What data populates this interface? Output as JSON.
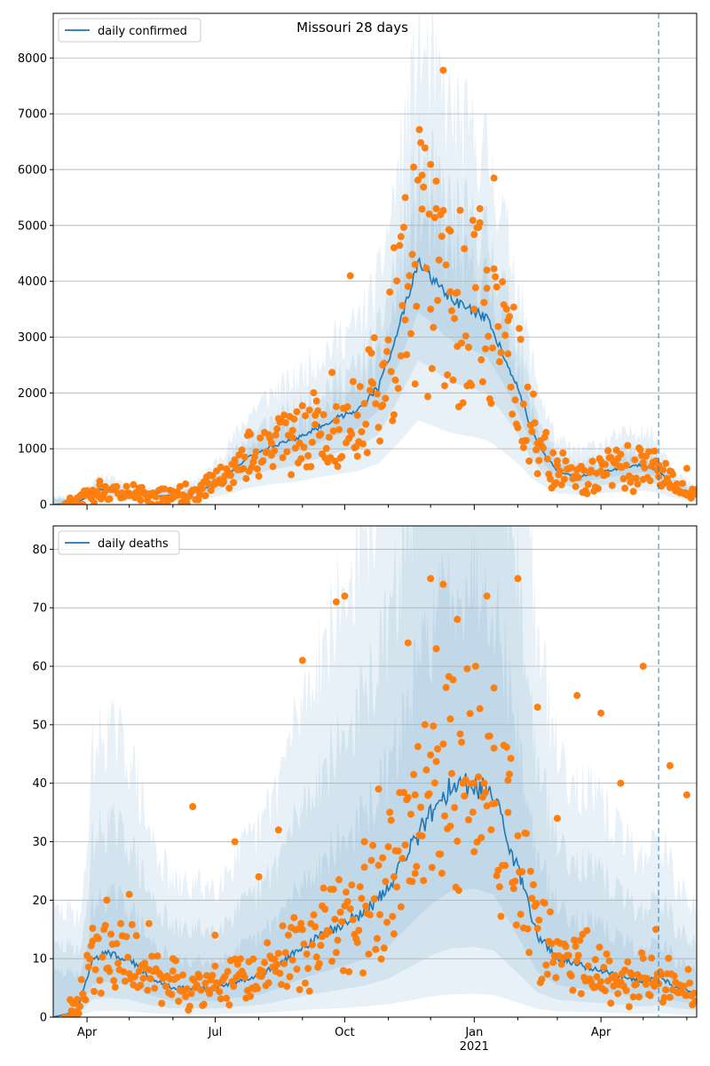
{
  "figure": {
    "suptitle": "Missouri 28 days"
  },
  "colors": {
    "model": "#1f77b4",
    "observed": "#ff7f0e",
    "band": "#1f77b4",
    "grid": "#b0b0b0",
    "forecast_line": "#1f77b4"
  },
  "chart_data": [
    {
      "type": "line",
      "title": "",
      "legend": [
        "daily confirmed"
      ],
      "legend_position": "top-left",
      "x_range": [
        "2020-03-08",
        "2021-06-08"
      ],
      "ylim": [
        0,
        8800
      ],
      "yticks": [
        0,
        1000,
        2000,
        3000,
        4000,
        5000,
        6000,
        7000,
        8000
      ],
      "forecast_start": "2021-05-12",
      "grid": "horizontal",
      "series": [
        {
          "name": "daily confirmed",
          "kind": "model_median",
          "x": [
            "2020-03-08",
            "2020-03-25",
            "2020-04-10",
            "2020-05-01",
            "2020-05-20",
            "2020-06-10",
            "2020-06-25",
            "2020-07-10",
            "2020-07-25",
            "2020-08-10",
            "2020-08-25",
            "2020-09-10",
            "2020-09-25",
            "2020-10-10",
            "2020-10-25",
            "2020-11-05",
            "2020-11-15",
            "2020-11-22",
            "2020-12-01",
            "2020-12-10",
            "2020-12-20",
            "2021-01-01",
            "2021-01-10",
            "2021-01-20",
            "2021-02-01",
            "2021-02-10",
            "2021-02-20",
            "2021-03-01",
            "2021-03-15",
            "2021-04-01",
            "2021-04-15",
            "2021-05-01",
            "2021-05-12",
            "2021-05-25",
            "2021-06-08"
          ],
          "y": [
            0,
            30,
            280,
            200,
            150,
            180,
            300,
            550,
            850,
            1050,
            1150,
            1350,
            1550,
            1700,
            2100,
            2900,
            3700,
            4300,
            4100,
            3800,
            3600,
            3450,
            3300,
            2800,
            2100,
            1400,
            900,
            600,
            500,
            580,
            650,
            720,
            600,
            300,
            150
          ]
        },
        {
          "name": "observed",
          "kind": "scatter",
          "x": [
            "2020-03-20",
            "2020-04-01",
            "2020-04-10",
            "2020-05-01",
            "2020-06-01",
            "2020-06-20",
            "2020-07-01",
            "2020-07-15",
            "2020-07-25",
            "2020-08-10",
            "2020-08-25",
            "2020-09-10",
            "2020-09-25",
            "2020-10-05",
            "2020-10-10",
            "2020-10-20",
            "2020-10-28",
            "2020-11-05",
            "2020-11-10",
            "2020-11-13",
            "2020-11-20",
            "2020-11-25",
            "2020-12-01",
            "2020-12-05",
            "2020-12-10",
            "2020-12-15",
            "2020-12-20",
            "2021-01-01",
            "2021-01-05",
            "2021-01-10",
            "2021-01-15",
            "2021-01-25",
            "2021-02-05",
            "2021-02-15",
            "2021-03-01",
            "2021-03-15",
            "2021-04-01",
            "2021-04-15",
            "2021-05-01",
            "2021-05-12",
            "2021-05-20",
            "2021-06-01"
          ],
          "y": [
            100,
            250,
            350,
            200,
            150,
            250,
            400,
            800,
            1300,
            1100,
            1200,
            1600,
            1500,
            4100,
            1600,
            2200,
            2500,
            4600,
            4800,
            5500,
            4300,
            5900,
            3500,
            5300,
            7780,
            4900,
            3800,
            3500,
            5300,
            4200,
            5850,
            2700,
            1800,
            1100,
            700,
            500,
            600,
            900,
            750,
            500,
            600,
            650
          ]
        }
      ]
    },
    {
      "type": "line",
      "title": "",
      "legend": [
        "daily deaths"
      ],
      "legend_position": "top-left",
      "x_range": [
        "2020-03-08",
        "2021-06-08"
      ],
      "ylim": [
        0,
        84
      ],
      "yticks": [
        0,
        10,
        20,
        30,
        40,
        50,
        60,
        70,
        80
      ],
      "xticks": [
        "Apr",
        "Jul",
        "Oct",
        "Jan",
        "Apr"
      ],
      "xtick_dates": [
        "2020-04-01",
        "2020-07-01",
        "2020-10-01",
        "2021-01-01",
        "2021-04-01"
      ],
      "year_label": "2021",
      "forecast_start": "2021-05-12",
      "grid": "horizontal",
      "series": [
        {
          "name": "daily deaths",
          "kind": "model_median",
          "x": [
            "2020-03-08",
            "2020-03-25",
            "2020-04-05",
            "2020-04-15",
            "2020-05-01",
            "2020-05-15",
            "2020-06-01",
            "2020-06-15",
            "2020-07-01",
            "2020-07-15",
            "2020-08-01",
            "2020-08-15",
            "2020-09-01",
            "2020-09-15",
            "2020-10-01",
            "2020-10-15",
            "2020-11-01",
            "2020-11-15",
            "2020-12-01",
            "2020-12-15",
            "2021-01-01",
            "2021-01-15",
            "2021-02-01",
            "2021-02-15",
            "2021-03-01",
            "2021-03-15",
            "2021-04-01",
            "2021-04-15",
            "2021-05-01",
            "2021-05-12",
            "2021-05-25",
            "2021-06-08"
          ],
          "y": [
            0,
            1,
            10,
            11,
            10,
            7,
            5,
            5,
            5,
            6,
            7,
            9,
            12,
            14,
            16,
            18,
            22,
            28,
            35,
            39,
            40,
            38,
            25,
            14,
            10,
            9,
            8,
            7,
            6,
            7,
            5,
            4
          ]
        },
        {
          "name": "observed",
          "kind": "scatter",
          "x": [
            "2020-03-25",
            "2020-04-05",
            "2020-04-15",
            "2020-05-01",
            "2020-05-15",
            "2020-06-01",
            "2020-06-15",
            "2020-07-01",
            "2020-07-15",
            "2020-08-01",
            "2020-08-15",
            "2020-09-01",
            "2020-09-15",
            "2020-09-25",
            "2020-10-01",
            "2020-10-15",
            "2020-10-25",
            "2020-11-05",
            "2020-11-15",
            "2020-11-20",
            "2020-12-01",
            "2020-12-05",
            "2020-12-10",
            "2020-12-15",
            "2020-12-20",
            "2021-01-01",
            "2021-01-10",
            "2021-01-15",
            "2021-01-25",
            "2021-02-01",
            "2021-02-15",
            "2021-03-01",
            "2021-03-15",
            "2021-04-01",
            "2021-04-15",
            "2021-05-01",
            "2021-05-10",
            "2021-05-20",
            "2021-06-01"
          ],
          "y": [
            1,
            13,
            20,
            21,
            16,
            10,
            36,
            14,
            30,
            24,
            32,
            61,
            19,
            71,
            72,
            30,
            39,
            24,
            64,
            38,
            75,
            63,
            74,
            51,
            68,
            40,
            72,
            46,
            35,
            75,
            53,
            34,
            55,
            52,
            40,
            60,
            15,
            43,
            38
          ]
        }
      ]
    }
  ]
}
